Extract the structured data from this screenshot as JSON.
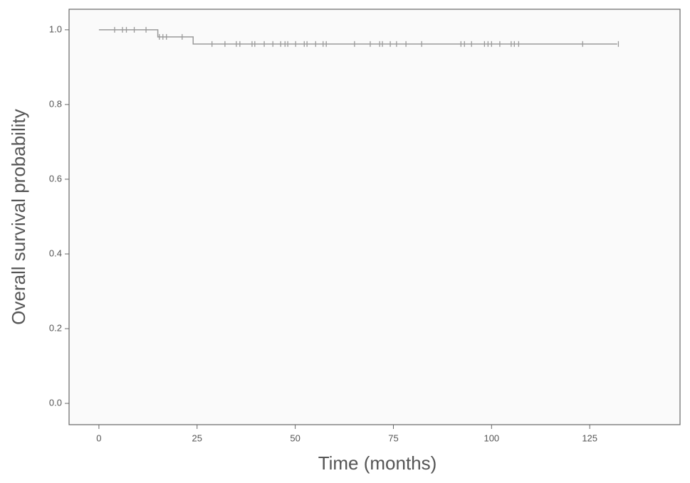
{
  "chart_data": {
    "type": "km",
    "xlabel": "Time (months)",
    "ylabel": "Overall survival probability",
    "xlim": [
      -7.6,
      148
    ],
    "ylim": [
      -0.057,
      1.055
    ],
    "xticks": [
      0,
      25,
      50,
      75,
      100,
      125
    ],
    "yticks": [
      {
        "value": 0,
        "label": "0.0"
      },
      0.2,
      0.4,
      0.6,
      0.8,
      {
        "value": 1,
        "label": "1.0"
      }
    ],
    "color": "#9a9a9a",
    "curve": {
      "x": [
        0,
        15,
        15,
        24,
        24,
        132
      ],
      "values": [
        1.0,
        1.0,
        0.981,
        0.981,
        0.962,
        0.962
      ]
    },
    "censored": {
      "x": [
        4,
        6,
        7,
        9,
        12,
        15.4,
        16.3,
        17.2,
        21.2,
        28.8,
        32.1,
        35.0,
        35.9,
        39.0,
        39.7,
        42.1,
        44.3,
        46.3,
        47.4,
        48.1,
        50.1,
        52.3,
        53.0,
        55.2,
        57.1,
        57.9,
        65.1,
        69.1,
        71.5,
        72.2,
        74.2,
        75.8,
        78.2,
        82.2,
        92.2,
        93.1,
        94.9,
        98.2,
        99.1,
        100,
        102.1,
        105.0,
        105.8,
        106.9,
        123.2,
        132.3
      ],
      "values": [
        1.0,
        1.0,
        1.0,
        1.0,
        1.0,
        0.981,
        0.981,
        0.981,
        0.981,
        0.962,
        0.962,
        0.962,
        0.962,
        0.962,
        0.962,
        0.962,
        0.962,
        0.962,
        0.962,
        0.962,
        0.962,
        0.962,
        0.962,
        0.962,
        0.962,
        0.962,
        0.962,
        0.962,
        0.962,
        0.962,
        0.962,
        0.962,
        0.962,
        0.962,
        0.962,
        0.962,
        0.962,
        0.962,
        0.962,
        0.962,
        0.962,
        0.962,
        0.962,
        0.962,
        0.962,
        0.962
      ]
    }
  }
}
